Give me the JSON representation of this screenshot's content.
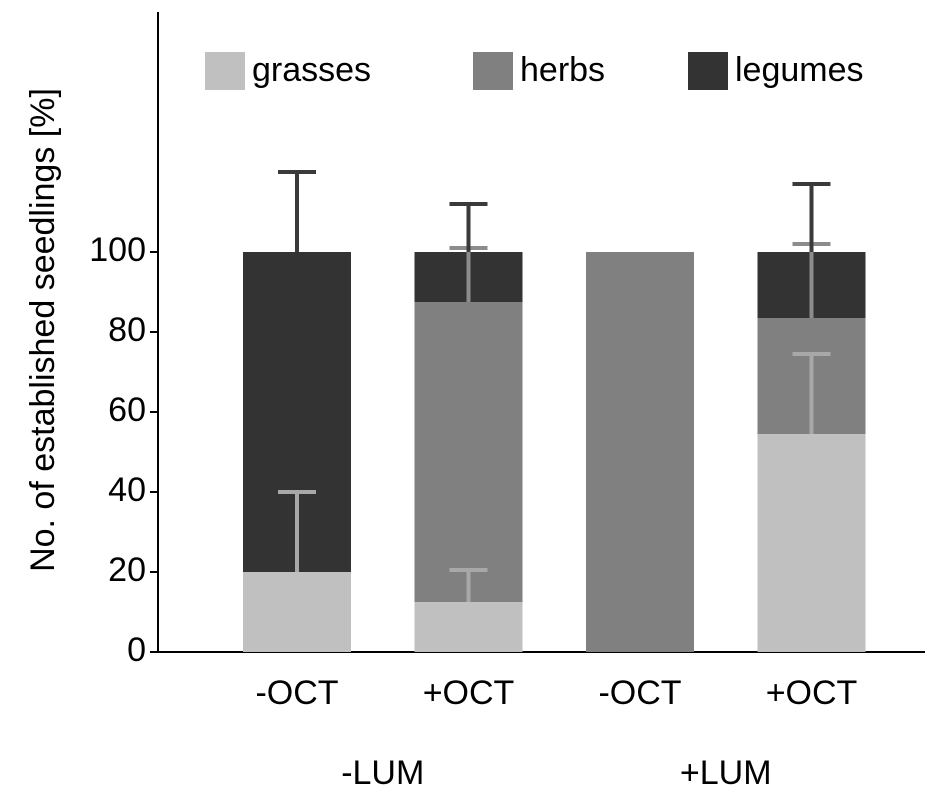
{
  "chart_data": {
    "type": "stacked_bar",
    "y_label": "No. of established seedlings [%]",
    "categories": [
      "-OCT",
      "+OCT",
      "-OCT",
      "+OCT"
    ],
    "groups": [
      "-LUM",
      "+LUM"
    ],
    "series": [
      {
        "name": "grasses",
        "color": "#c0c0c0",
        "error_color": "#a8a8a8",
        "values": [
          20,
          12.5,
          0,
          54.5
        ],
        "errors": [
          20,
          8,
          null,
          20
        ]
      },
      {
        "name": "herbs",
        "color": "#808080",
        "error_color": "#8c8c8c",
        "values": [
          0,
          75,
          100,
          29
        ],
        "errors": [
          null,
          13.5,
          null,
          18.5
        ]
      },
      {
        "name": "legumes",
        "color": "#333333",
        "error_color": "#3a3a3a",
        "values": [
          80,
          12.5,
          0,
          16.5
        ],
        "errors": [
          20,
          12,
          null,
          17
        ]
      }
    ],
    "ylim": [
      0,
      160
    ],
    "yticks": [
      0,
      20,
      40,
      60,
      80,
      100
    ]
  }
}
